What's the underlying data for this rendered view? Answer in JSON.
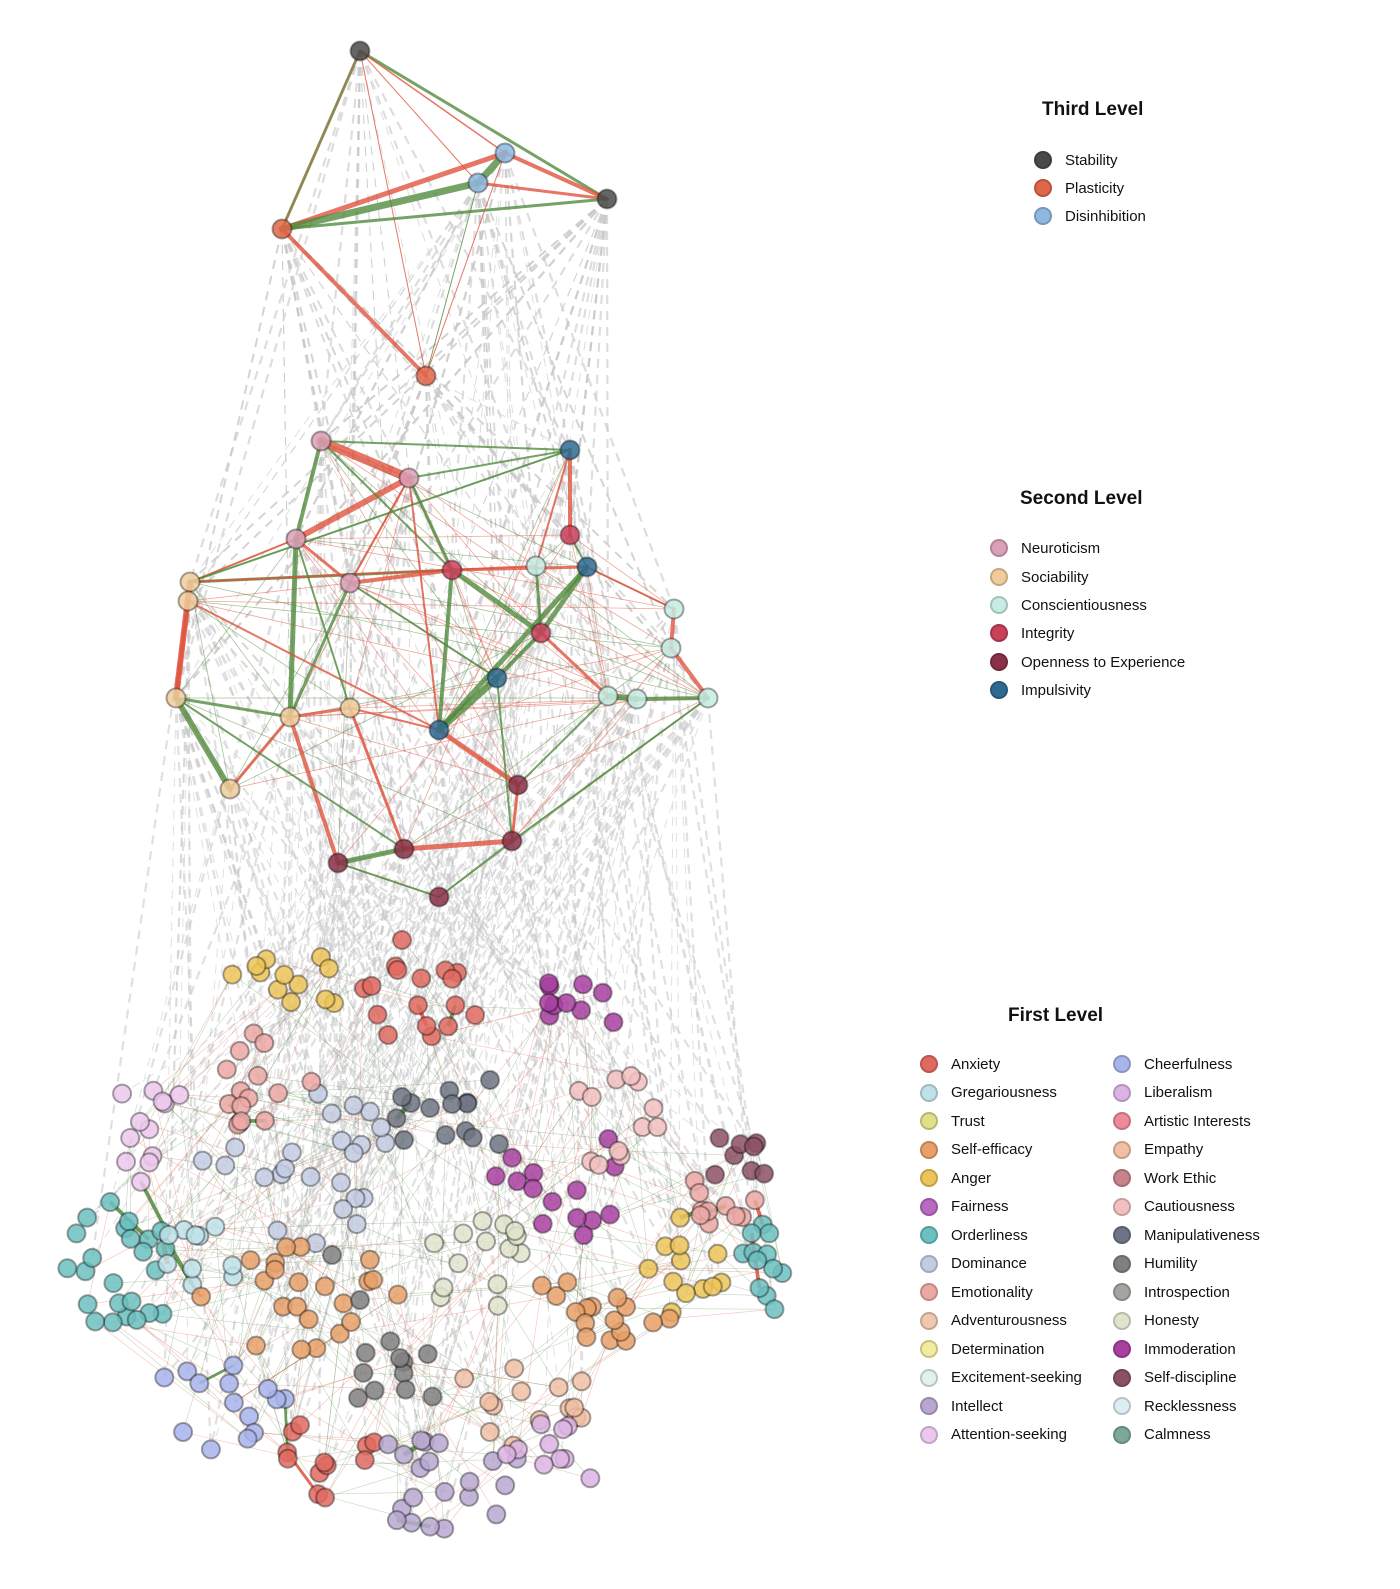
{
  "legend": {
    "third": {
      "title": "Third Level",
      "items": [
        {
          "label": "Stability",
          "color": "#4a4a4a"
        },
        {
          "label": "Plasticity",
          "color": "#e0664a"
        },
        {
          "label": "Disinhibition",
          "color": "#8fb8e0"
        }
      ]
    },
    "second": {
      "title": "Second Level",
      "items": [
        {
          "label": "Neuroticism",
          "color": "#d9a0b8"
        },
        {
          "label": "Sociability",
          "color": "#f0cc9c"
        },
        {
          "label": "Conscientiousness",
          "color": "#c6ece4"
        },
        {
          "label": "Integrity",
          "color": "#c8405a"
        },
        {
          "label": "Openness  to  Experience",
          "color": "#8a3048"
        },
        {
          "label": "Impulsivity",
          "color": "#2e6a90"
        }
      ]
    },
    "first": {
      "title": "First Level",
      "items": [
        {
          "label": "Anxiety",
          "color": "#e06a60"
        },
        {
          "label": "Gregariousness",
          "color": "#bfe2ea"
        },
        {
          "label": "Trust",
          "color": "#dfe08a"
        },
        {
          "label": "Self-efficacy",
          "color": "#e8a068"
        },
        {
          "label": "Anger",
          "color": "#ecc45a"
        },
        {
          "label": "Fairness",
          "color": "#b86ac0"
        },
        {
          "label": "Orderliness",
          "color": "#6cc0c0"
        },
        {
          "label": "Dominance",
          "color": "#c4cce4"
        },
        {
          "label": "Emotionality",
          "color": "#eca8a4"
        },
        {
          "label": "Adventurousness",
          "color": "#f0c8b0"
        },
        {
          "label": "Determination",
          "color": "#f2eca0"
        },
        {
          "label": "Excitement-seeking",
          "color": "#e2f2e8"
        },
        {
          "label": "Intellect",
          "color": "#b8a8d0"
        },
        {
          "label": "Attention-seeking",
          "color": "#ecc8ec"
        },
        {
          "label": "Cheerfulness",
          "color": "#a8b4ec"
        },
        {
          "label": "Liberalism",
          "color": "#dcb4e4"
        },
        {
          "label": "Artistic  Interests",
          "color": "#ee8a9a"
        },
        {
          "label": "Empathy",
          "color": "#f0c0a4"
        },
        {
          "label": "Work  Ethic",
          "color": "#c8848c"
        },
        {
          "label": "Cautiousness",
          "color": "#f2c0c0"
        },
        {
          "label": "Manipulativeness",
          "color": "#6e7484"
        },
        {
          "label": "Humility",
          "color": "#808080"
        },
        {
          "label": "Introspection",
          "color": "#a4a4a0"
        },
        {
          "label": "Honesty",
          "color": "#e0e4cc"
        },
        {
          "label": "Immoderation",
          "color": "#a840a0"
        },
        {
          "label": "Self-discipline",
          "color": "#8c5064"
        },
        {
          "label": "Recklessness",
          "color": "#ddeef2"
        },
        {
          "label": "Calmness",
          "color": "#7ca898"
        }
      ]
    }
  },
  "edge_colors": {
    "positive": "#4f8a3c",
    "negative": "#e0503a",
    "cross_level": "#c8c8c8"
  }
}
